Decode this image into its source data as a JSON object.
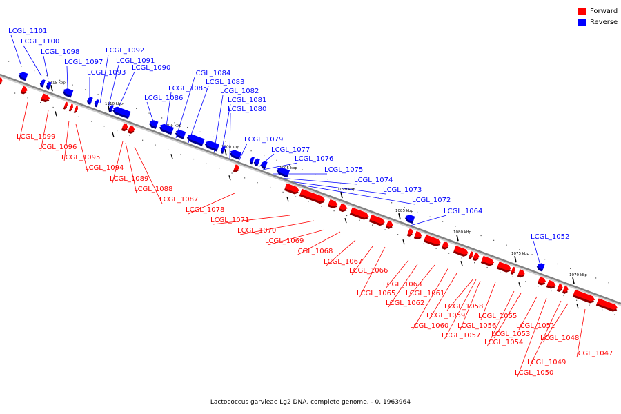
{
  "colors": {
    "forward": "#ff0000",
    "reverse": "#0000ff",
    "backbone": "#808080",
    "background": "#ffffff"
  },
  "legend": {
    "forward_label": "Forward",
    "reverse_label": "Reverse"
  },
  "caption": "Lactococcus garvieae Lg2 DNA, complete genome. - 0..1963964",
  "scale_ticks": [
    "1115 kbp",
    "1110 kbp",
    "1105 kbp",
    "1100 kbp",
    "1095 kbp",
    "1090 kbp",
    "1085 kbp",
    "1080 kbp",
    "1075 kbp",
    "1070 kbp"
  ],
  "reverse_genes": [
    "LCGL_1101",
    "LCGL_1100",
    "LCGL_1098",
    "LCGL_1097",
    "LCGL_1093",
    "LCGL_1092",
    "LCGL_1091",
    "LCGL_1090",
    "LCGL_1086",
    "LCGL_1085",
    "LCGL_1084",
    "LCGL_1083",
    "LCGL_1082",
    "LCGL_1081",
    "LCGL_1080",
    "LCGL_1079",
    "LCGL_1077",
    "LCGL_1076",
    "LCGL_1075",
    "LCGL_1074",
    "LCGL_1073",
    "LCGL_1072",
    "LCGL_1064",
    "LCGL_1052"
  ],
  "forward_genes": [
    "LCGL_1099",
    "LCGL_1096",
    "LCGL_1095",
    "LCGL_1094",
    "LCGL_1089",
    "LCGL_1088",
    "LCGL_1087",
    "LCGL_1078",
    "LCGL_1071",
    "LCGL_1070",
    "LCGL_1069",
    "LCGL_1068",
    "LCGL_1067",
    "LCGL_1066",
    "LCGL_1065",
    "LCGL_1063",
    "LCGL_1062",
    "LCGL_1061",
    "LCGL_1060",
    "LCGL_1059",
    "LCGL_1058",
    "LCGL_1057",
    "LCGL_1056",
    "LCGL_1055",
    "LCGL_1054",
    "LCGL_1053",
    "LCGL_1051",
    "LCGL_1050",
    "LCGL_1049",
    "LCGL_1048",
    "LCGL_1047"
  ]
}
